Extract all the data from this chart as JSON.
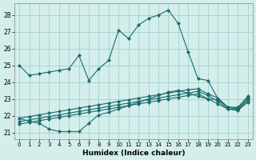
{
  "xlabel": "Humidex (Indice chaleur)",
  "bg_color": "#d4eeeb",
  "grid_color": "#a8d4d0",
  "line_color": "#1a6b6b",
  "xlim": [
    -0.5,
    23.5
  ],
  "ylim": [
    20.6,
    28.7
  ],
  "yticks": [
    21,
    22,
    23,
    24,
    25,
    26,
    27,
    28
  ],
  "xticks": [
    0,
    1,
    2,
    3,
    4,
    5,
    6,
    7,
    8,
    9,
    10,
    11,
    12,
    13,
    14,
    15,
    16,
    17,
    18,
    19,
    20,
    21,
    22,
    23
  ],
  "curve_x": [
    0,
    1,
    2,
    3,
    4,
    5,
    6,
    7,
    8,
    9,
    10,
    11,
    12,
    13,
    14,
    15,
    16,
    17,
    18,
    19,
    20,
    21,
    22,
    23
  ],
  "curve_y": [
    25.0,
    24.4,
    24.5,
    24.6,
    24.7,
    24.8,
    25.6,
    24.1,
    24.8,
    25.3,
    27.1,
    26.6,
    27.4,
    27.8,
    28.0,
    28.3,
    27.5,
    25.8,
    24.2,
    24.1,
    23.0,
    22.5,
    22.5,
    23.1
  ],
  "diag1_x": [
    0,
    1,
    2,
    3,
    4,
    5,
    6,
    7,
    8,
    9,
    10,
    11,
    12,
    13,
    14,
    15,
    16,
    17,
    18,
    19,
    20,
    21,
    22,
    23
  ],
  "diag1_y": [
    21.85,
    21.95,
    22.05,
    22.15,
    22.25,
    22.35,
    22.45,
    22.55,
    22.65,
    22.75,
    22.85,
    22.95,
    23.05,
    23.15,
    23.25,
    23.35,
    23.45,
    23.55,
    23.6,
    23.3,
    23.05,
    22.5,
    22.45,
    23.15
  ],
  "diag2_x": [
    0,
    1,
    2,
    3,
    4,
    5,
    6,
    7,
    8,
    9,
    10,
    11,
    12,
    13,
    14,
    15,
    16,
    17,
    18,
    19,
    20,
    21,
    22,
    23
  ],
  "diag2_y": [
    21.65,
    21.75,
    21.85,
    21.95,
    22.05,
    22.15,
    22.25,
    22.35,
    22.45,
    22.55,
    22.65,
    22.75,
    22.85,
    22.95,
    23.05,
    23.15,
    23.25,
    23.35,
    23.45,
    23.2,
    22.85,
    22.4,
    22.35,
    22.9
  ],
  "diag3_x": [
    0,
    1,
    2,
    3,
    4,
    5,
    6,
    7,
    8,
    9,
    10,
    11,
    12,
    13,
    14,
    15,
    16,
    17,
    18,
    19,
    20,
    21,
    22,
    23
  ],
  "diag3_y": [
    21.5,
    21.6,
    21.7,
    21.8,
    21.9,
    22.0,
    22.1,
    22.2,
    22.3,
    22.4,
    22.5,
    22.6,
    22.7,
    22.8,
    22.9,
    23.0,
    23.1,
    23.2,
    23.3,
    23.0,
    22.7,
    22.4,
    22.3,
    22.8
  ],
  "dip_x": [
    0,
    1,
    2,
    3,
    4,
    5,
    6,
    7,
    8,
    9,
    10,
    11,
    12,
    13,
    14,
    15,
    16,
    17,
    18,
    19,
    20,
    21,
    22,
    23
  ],
  "dip_y": [
    21.85,
    21.65,
    21.55,
    21.2,
    21.05,
    21.05,
    21.05,
    21.55,
    22.05,
    22.2,
    22.4,
    22.6,
    22.8,
    23.0,
    23.2,
    23.4,
    23.5,
    23.35,
    23.15,
    23.0,
    22.95,
    22.5,
    22.4,
    23.0
  ]
}
